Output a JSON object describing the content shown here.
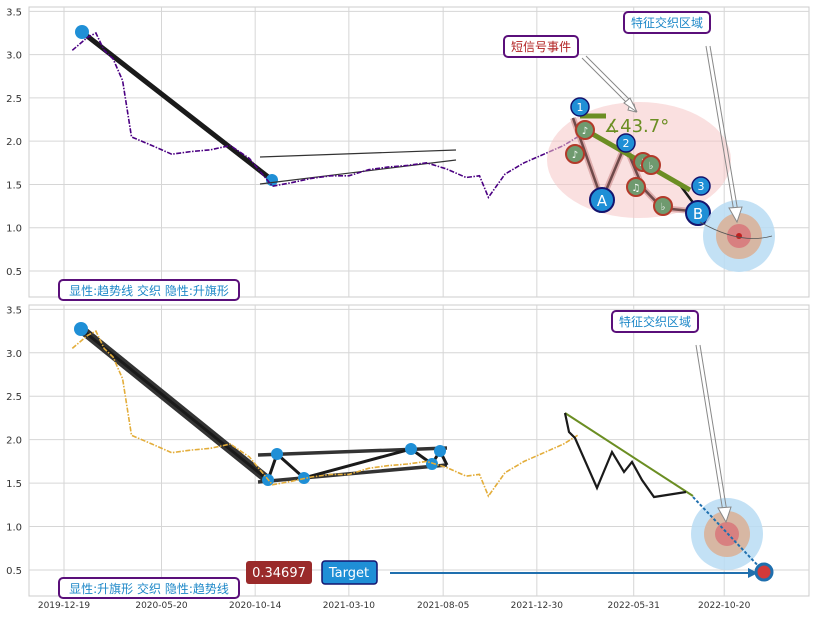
{
  "colors": {
    "top_series": "#4b0082",
    "bottom_series": "#e3ad3a",
    "trend_dark": "#1a1a1a",
    "marker_blue": "#1f8fd6",
    "wedge_green": "#6b8e23",
    "label_border": "#5a0f7a",
    "label_text": "#1e88c8",
    "value_badge": "#9a2a2a"
  },
  "chart_data": [
    {
      "type": "line",
      "panel": "top",
      "ylim": [
        0.2,
        3.55
      ],
      "yticks": [
        "0.5",
        "1.0",
        "1.5",
        "2.0",
        "2.5",
        "3.0",
        "3.5"
      ],
      "grid": true,
      "x_dates": [
        "2020-01-01",
        "2020-01-25",
        "2020-02-07",
        "2020-02-20",
        "2020-03-05",
        "2020-03-20",
        "2020-04-03",
        "2020-05-05",
        "2020-06-05",
        "2020-07-05",
        "2020-08-05",
        "2020-09-05",
        "2020-10-05",
        "2020-11-10",
        "2020-12-10",
        "2021-01-10",
        "2021-02-10",
        "2021-03-10",
        "2021-04-10",
        "2021-05-10",
        "2021-06-10",
        "2021-07-10",
        "2021-08-10",
        "2021-09-10",
        "2021-10-01",
        "2021-10-15",
        "2021-11-10",
        "2021-12-10",
        "2022-01-10",
        "2022-02-10",
        "2022-03-04"
      ],
      "values": [
        3.05,
        3.2,
        3.25,
        3.05,
        2.95,
        2.7,
        2.05,
        1.95,
        1.85,
        1.88,
        1.9,
        1.95,
        1.8,
        1.48,
        1.52,
        1.57,
        1.6,
        1.6,
        1.67,
        1.7,
        1.72,
        1.75,
        1.68,
        1.58,
        1.6,
        1.35,
        1.62,
        1.75,
        1.85,
        1.95,
        2.05
      ],
      "annotations": {
        "event_label": "短信号事件",
        "zone_label": "特征交织区域",
        "angle_label": "∡43.7°",
        "status_label": "显性:趋势线 交织 隐性:升旗形",
        "point_labels": [
          "1",
          "2",
          "3",
          "A",
          "B"
        ],
        "note_glyphs": [
          "♪",
          "♪",
          "♫",
          "♫",
          "♭",
          "♭"
        ]
      }
    },
    {
      "type": "line",
      "panel": "bottom",
      "ylim": [
        0.2,
        3.55
      ],
      "yticks": [
        "0.5",
        "1.0",
        "1.5",
        "2.0",
        "2.5",
        "3.0",
        "3.5"
      ],
      "xticks": [
        "2019-12-19",
        "2020-05-20",
        "2020-10-14",
        "2021-03-10",
        "2021-08-05",
        "2021-12-30",
        "2022-05-31",
        "2022-10-20"
      ],
      "grid": true,
      "x_dates": [
        "2020-01-01",
        "2020-01-25",
        "2020-02-07",
        "2020-02-20",
        "2020-03-05",
        "2020-03-20",
        "2020-04-03",
        "2020-05-05",
        "2020-06-05",
        "2020-07-05",
        "2020-08-05",
        "2020-09-05",
        "2020-10-05",
        "2020-11-10",
        "2020-12-10",
        "2021-01-10",
        "2021-02-10",
        "2021-03-10",
        "2021-04-10",
        "2021-05-10",
        "2021-06-10",
        "2021-07-10",
        "2021-08-10",
        "2021-09-10",
        "2021-10-01",
        "2021-10-15",
        "2021-11-10",
        "2021-12-10",
        "2022-01-10",
        "2022-02-10",
        "2022-03-04"
      ],
      "values": [
        3.05,
        3.2,
        3.25,
        3.05,
        2.95,
        2.7,
        2.05,
        1.95,
        1.85,
        1.88,
        1.9,
        1.95,
        1.8,
        1.48,
        1.52,
        1.57,
        1.6,
        1.6,
        1.67,
        1.7,
        1.72,
        1.75,
        1.68,
        1.58,
        1.6,
        1.35,
        1.62,
        1.75,
        1.85,
        1.95,
        2.05
      ],
      "annotations": {
        "zone_label": "特征交织区域",
        "value_badge": "0.34697",
        "target_label": "Target",
        "status_label": "显性:升旗形 交织 隐性:趋势线"
      }
    }
  ]
}
